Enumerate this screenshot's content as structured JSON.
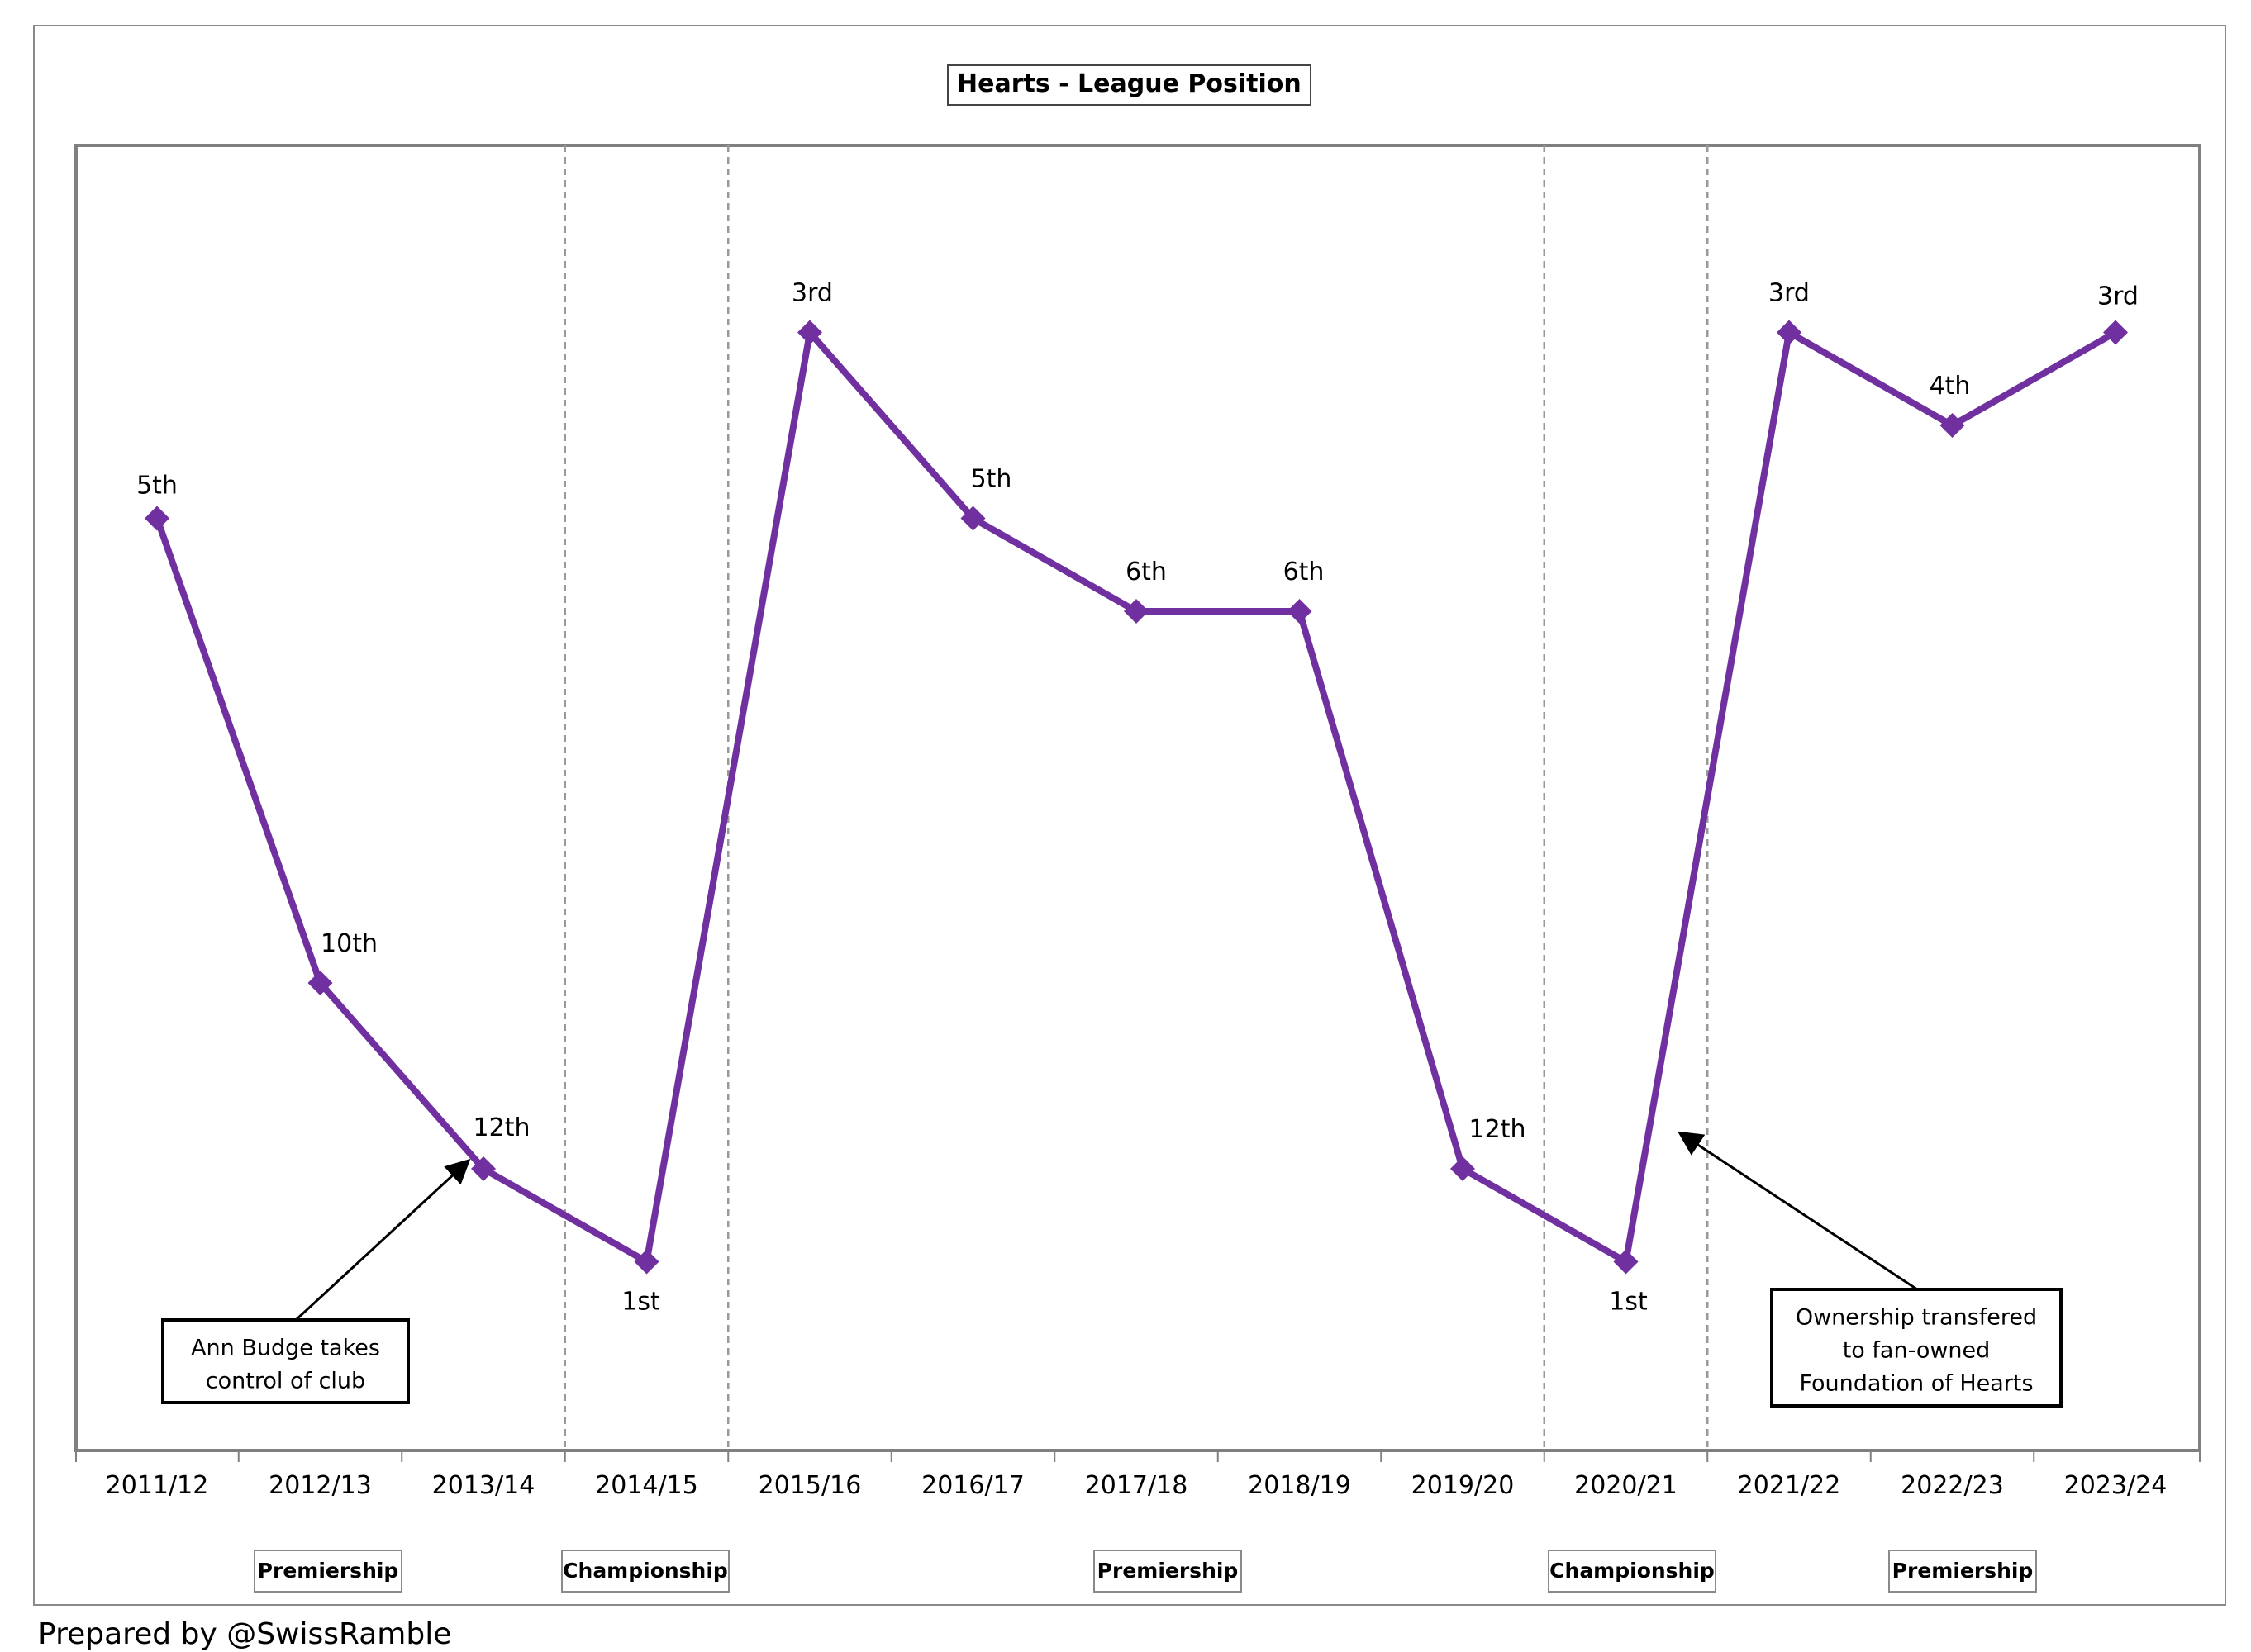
{
  "chart_data": {
    "type": "line",
    "title": "Hearts - League Position",
    "xlabel": "",
    "ylabel": "",
    "categories": [
      "2011/12",
      "2012/13",
      "2013/14",
      "2014/15",
      "2015/16",
      "2016/17",
      "2017/18",
      "2018/19",
      "2019/20",
      "2020/21",
      "2021/22",
      "2022/23",
      "2023/24"
    ],
    "series": [
      {
        "color": "#7030A0",
        "marker": "diamond",
        "values": [
          5,
          10,
          12,
          13,
          3,
          5,
          6,
          6,
          12,
          13,
          3,
          4,
          3
        ],
        "data_labels": [
          "5th",
          "10th",
          "12th",
          "1st",
          "3rd",
          "5th",
          "6th",
          "6th",
          "12th",
          "1st",
          "3rd",
          "4th",
          "3rd"
        ]
      }
    ],
    "league_sections": [
      {
        "label": "Premiership",
        "from": "2011/12",
        "to": "2013/14"
      },
      {
        "label": "Championship",
        "from": "2014/15",
        "to": "2014/15"
      },
      {
        "label": "Premiership",
        "from": "2015/16",
        "to": "2019/20"
      },
      {
        "label": "Championship",
        "from": "2020/21",
        "to": "2020/21"
      },
      {
        "label": "Premiership",
        "from": "2021/22",
        "to": "2023/24"
      }
    ],
    "annotations": [
      {
        "lines": [
          "Ann Budge takes",
          "control of club"
        ],
        "points_to": "2013/14"
      },
      {
        "lines": [
          "Ownership transfered",
          "to fan-owned",
          "Foundation of Hearts"
        ],
        "points_to": "2020/21-2021/22"
      }
    ],
    "grid": false,
    "axis_border_color": "#808080",
    "divider_color": "#999999"
  },
  "footer": {
    "credit": "Prepared by @SwissRamble"
  }
}
